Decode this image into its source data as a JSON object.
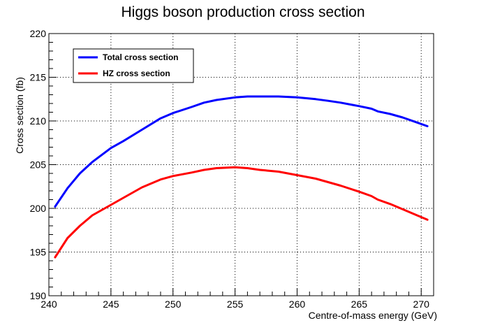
{
  "chart_data": {
    "type": "line",
    "title": "Higgs boson production cross section",
    "xlabel": "Centre-of-mass energy (GeV)",
    "ylabel": "Cross section (fb)",
    "xlim": [
      240,
      271
    ],
    "ylim": [
      190,
      220
    ],
    "xticks": [
      240,
      245,
      250,
      255,
      260,
      265,
      270
    ],
    "yticks": [
      190,
      195,
      200,
      205,
      210,
      215,
      220
    ],
    "grid": true,
    "legend_position": "top-left",
    "series": [
      {
        "name": "Total cross section",
        "color": "#0000ff",
        "x": [
          240.5,
          241.5,
          242.5,
          243.5,
          245.0,
          246.0,
          247.5,
          249.0,
          250.0,
          251.5,
          252.5,
          253.5,
          255.0,
          256.0,
          257.0,
          258.5,
          260.0,
          261.5,
          262.5,
          263.5,
          265.0,
          266.0,
          266.5,
          267.5,
          268.5,
          269.5,
          270.5
        ],
        "y": [
          200.2,
          202.3,
          204.0,
          205.3,
          206.9,
          207.7,
          209.0,
          210.3,
          210.9,
          211.6,
          212.1,
          212.4,
          212.7,
          212.8,
          212.8,
          212.8,
          212.7,
          212.5,
          212.3,
          212.1,
          211.7,
          211.4,
          211.1,
          210.8,
          210.4,
          209.9,
          209.4
        ]
      },
      {
        "name": "HZ cross section",
        "color": "#ff0000",
        "x": [
          240.5,
          241.5,
          242.5,
          243.5,
          245.0,
          246.0,
          247.5,
          249.0,
          250.0,
          251.5,
          252.5,
          253.5,
          255.0,
          256.0,
          257.0,
          258.5,
          260.0,
          261.5,
          262.5,
          263.5,
          265.0,
          266.0,
          266.5,
          267.5,
          268.5,
          269.5,
          270.5
        ],
        "y": [
          194.4,
          196.6,
          198.0,
          199.2,
          200.4,
          201.2,
          202.4,
          203.3,
          203.7,
          204.1,
          204.4,
          204.6,
          204.7,
          204.6,
          204.4,
          204.2,
          203.8,
          203.4,
          203.0,
          202.6,
          201.9,
          201.4,
          201.0,
          200.5,
          199.9,
          199.3,
          198.7
        ]
      }
    ]
  }
}
